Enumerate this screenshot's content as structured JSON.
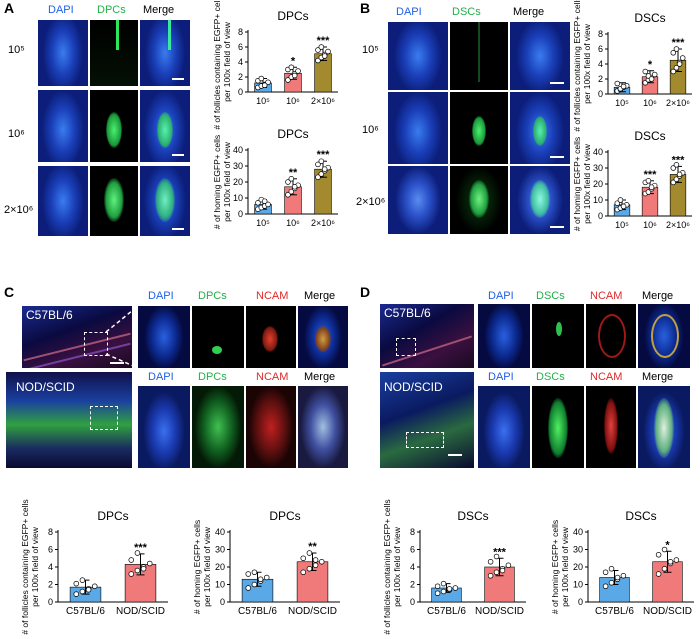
{
  "panels": {
    "A": {
      "label": "A",
      "channels": [
        "DAPI",
        "DPCs",
        "Merge"
      ],
      "rows": [
        "10⁵",
        "10⁶",
        "2×10⁶"
      ]
    },
    "B": {
      "label": "B",
      "channels": [
        "DAPI",
        "DSCs",
        "Merge"
      ],
      "rows": [
        "10⁵",
        "10⁶",
        "2×10⁶"
      ]
    },
    "C": {
      "label": "C",
      "channels": [
        "DAPI",
        "DPCs",
        "NCAM",
        "Merge"
      ],
      "rows": [
        "C57BL/6",
        "NOD/SCID"
      ]
    },
    "D": {
      "label": "D",
      "channels": [
        "DAPI",
        "DSCs",
        "NCAM",
        "Merge"
      ],
      "rows": [
        "C57BL/6",
        "NOD/SCID"
      ]
    }
  },
  "colors": {
    "dapi": "#1f5fe8",
    "dpc": "#22e05a",
    "ncam": "#e02a2a",
    "bar_blue": "#5aa8e6",
    "bar_pink": "#f07a7a",
    "bar_olive": "#a38a2e"
  },
  "chart_data": [
    {
      "id": "A-top",
      "type": "bar",
      "title": "DPCs",
      "ylabel": "# of follicles containing EGFP+ cells per 100x field of view",
      "categories": [
        "10⁵",
        "10⁶",
        "2×10⁶"
      ],
      "values": [
        1.2,
        2.5,
        5.1
      ],
      "errors": [
        0.6,
        0.8,
        0.9
      ],
      "significance": [
        "",
        "*",
        "***"
      ],
      "ylim": [
        0,
        8
      ],
      "yticks": [
        0,
        2,
        4,
        6,
        8
      ],
      "points": [
        [
          0.6,
          0.8,
          1.0,
          1.3,
          1.5,
          1.8,
          0.9
        ],
        [
          1.6,
          2.0,
          2.4,
          2.8,
          3.0,
          3.3,
          2.2
        ],
        [
          4.2,
          4.6,
          5.0,
          5.4,
          5.6,
          6.0,
          4.8
        ]
      ]
    },
    {
      "id": "A-bottom",
      "type": "bar",
      "title": "DPCs",
      "ylabel": "# of homing EGFP+ cells per 100x field of view",
      "categories": [
        "10⁵",
        "10⁶",
        "2×10⁶"
      ],
      "values": [
        6,
        17,
        28
      ],
      "errors": [
        3,
        5,
        5
      ],
      "significance": [
        "",
        "**",
        "***"
      ],
      "ylim": [
        0,
        40
      ],
      "yticks": [
        0,
        10,
        20,
        30,
        40
      ],
      "points": [
        [
          3,
          4,
          5,
          6,
          7,
          9,
          8
        ],
        [
          12,
          14,
          16,
          18,
          20,
          22,
          17
        ],
        [
          23,
          25,
          27,
          29,
          31,
          33,
          28
        ]
      ]
    },
    {
      "id": "B-top",
      "type": "bar",
      "title": "DSCs",
      "ylabel": "# of follicles containing EGFP+ cells per 100x field of view",
      "categories": [
        "10⁵",
        "10⁶",
        "2×10⁶"
      ],
      "values": [
        0.9,
        2.3,
        4.5
      ],
      "errors": [
        0.6,
        0.8,
        1.5
      ],
      "significance": [
        "",
        "*",
        "***"
      ],
      "ylim": [
        0,
        8
      ],
      "yticks": [
        0,
        2,
        4,
        6,
        8
      ],
      "points": [
        [
          0.4,
          0.6,
          0.9,
          1.1,
          1.4,
          0.7,
          1.0
        ],
        [
          1.5,
          1.9,
          2.2,
          2.6,
          3.0,
          2.4,
          2.0
        ],
        [
          3.0,
          3.5,
          4.2,
          4.8,
          5.5,
          6.0,
          4.0
        ]
      ]
    },
    {
      "id": "B-bottom",
      "type": "bar",
      "title": "DSCs",
      "ylabel": "# of homing EGFP+ cells per 100x field of view",
      "categories": [
        "10⁵",
        "10⁶",
        "2×10⁶"
      ],
      "values": [
        7,
        18,
        26
      ],
      "errors": [
        3,
        4,
        5
      ],
      "significance": [
        "",
        "***",
        "***"
      ],
      "ylim": [
        0,
        40
      ],
      "yticks": [
        0,
        10,
        20,
        30,
        40
      ],
      "points": [
        [
          4,
          5,
          6,
          7,
          8,
          10,
          6
        ],
        [
          14,
          15,
          17,
          19,
          21,
          22,
          18
        ],
        [
          21,
          23,
          25,
          27,
          30,
          32,
          26
        ]
      ]
    },
    {
      "id": "C-left",
      "type": "bar",
      "title": "DPCs",
      "ylabel": "# of follicles containing EGFP+ cells per 100x field of view",
      "categories": [
        "C57BL/6",
        "NOD/SCID"
      ],
      "values": [
        1.7,
        4.3
      ],
      "errors": [
        0.8,
        1.2
      ],
      "significance": [
        "",
        "***"
      ],
      "ylim": [
        0,
        8
      ],
      "yticks": [
        0,
        2,
        4,
        6,
        8
      ],
      "points": [
        [
          0.9,
          1.2,
          1.5,
          1.8,
          2.1,
          2.5,
          1.4
        ],
        [
          3.2,
          3.6,
          4.0,
          4.4,
          4.8,
          5.6,
          3.8
        ]
      ]
    },
    {
      "id": "C-right",
      "type": "bar",
      "title": "DPCs",
      "ylabel": "# of homing EGFP+ cells per 100x field of view",
      "categories": [
        "C57BL/6",
        "NOD/SCID"
      ],
      "values": [
        13,
        23
      ],
      "errors": [
        4,
        5
      ],
      "significance": [
        "",
        "**"
      ],
      "ylim": [
        0,
        40
      ],
      "yticks": [
        0,
        10,
        20,
        30,
        40
      ],
      "points": [
        [
          8,
          10,
          12,
          14,
          16,
          17,
          13
        ],
        [
          17,
          19,
          21,
          23,
          25,
          28,
          24
        ]
      ]
    },
    {
      "id": "D-left",
      "type": "bar",
      "title": "DSCs",
      "ylabel": "# of follicles containing EGFP+ cells per 100x field of view",
      "categories": [
        "C57BL/6",
        "NOD/SCID"
      ],
      "values": [
        1.6,
        4.0
      ],
      "errors": [
        0.5,
        1.0
      ],
      "significance": [
        "",
        "***"
      ],
      "ylim": [
        0,
        8
      ],
      "yticks": [
        0,
        2,
        4,
        6,
        8
      ],
      "points": [
        [
          1.0,
          1.2,
          1.4,
          1.6,
          1.8,
          2.1,
          1.5
        ],
        [
          3.0,
          3.4,
          3.8,
          4.2,
          4.6,
          5.2,
          3.6
        ]
      ]
    },
    {
      "id": "D-right",
      "type": "bar",
      "title": "DSCs",
      "ylabel": "# of homing EGFP+ cells per 100x field of view",
      "categories": [
        "C57BL/6",
        "NOD/SCID"
      ],
      "values": [
        14,
        23
      ],
      "errors": [
        4,
        6
      ],
      "significance": [
        "",
        "*"
      ],
      "ylim": [
        0,
        40
      ],
      "yticks": [
        0,
        10,
        20,
        30,
        40
      ],
      "points": [
        [
          9,
          11,
          13,
          15,
          17,
          19,
          14
        ],
        [
          16,
          19,
          22,
          24,
          27,
          30,
          23
        ]
      ]
    }
  ]
}
